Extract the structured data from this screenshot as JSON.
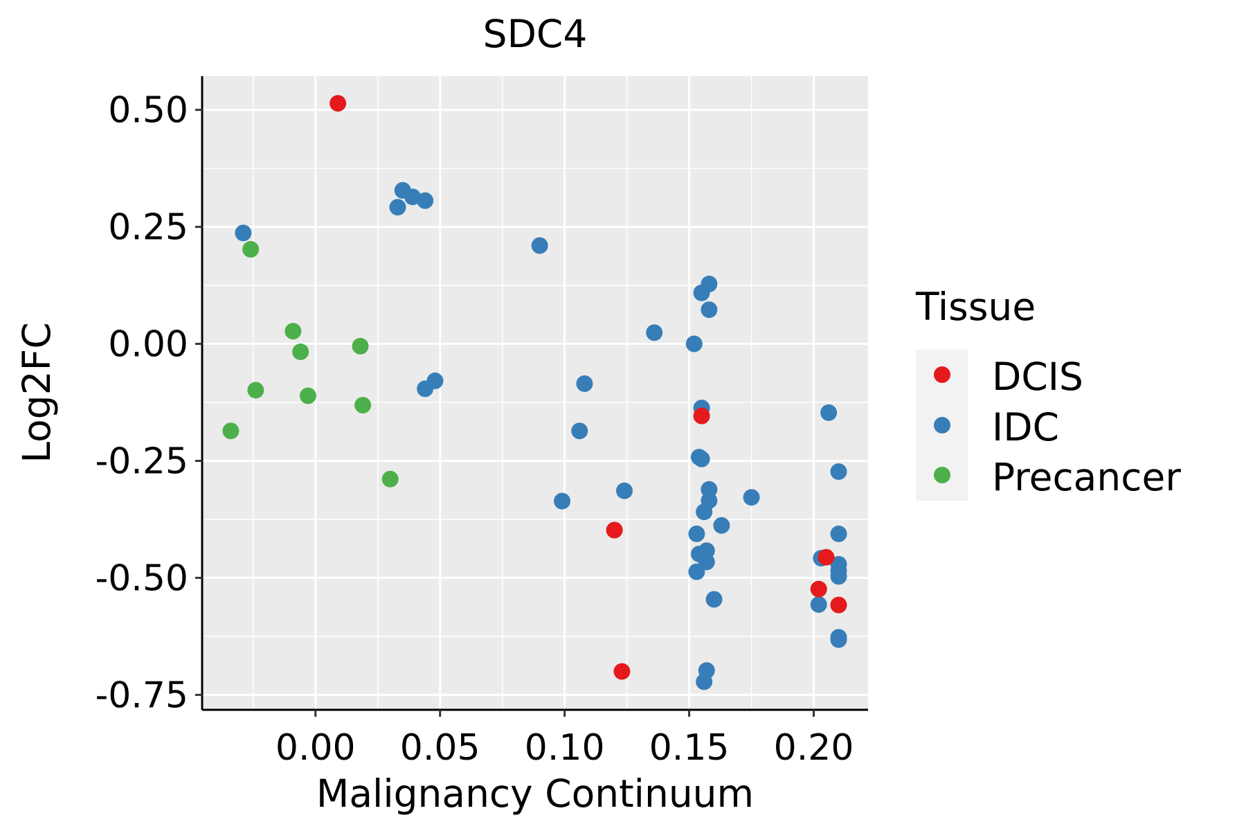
{
  "chart_data": {
    "type": "scatter",
    "title": "SDC4",
    "xlabel": "Malignancy Continuum",
    "ylabel": "Log2FC",
    "xlim": [
      -0.0455,
      0.2218
    ],
    "ylim": [
      -0.782,
      0.572
    ],
    "xticks": [
      0.0,
      0.05,
      0.1,
      0.15,
      0.2
    ],
    "xtick_labels": [
      "0.00",
      "0.05",
      "0.10",
      "0.15",
      "0.20"
    ],
    "yticks": [
      0.5,
      0.25,
      0.0,
      -0.25,
      -0.5,
      -0.75
    ],
    "ytick_labels": [
      "0.50",
      "0.25",
      "0.00",
      "-0.25",
      "-0.50",
      "-0.75"
    ],
    "grid": true,
    "legend": {
      "title": "Tissue",
      "placement": "right",
      "entries": [
        {
          "label": "DCIS",
          "color": "#E41A1C"
        },
        {
          "label": "IDC",
          "color": "#377EB8"
        },
        {
          "label": "Precancer",
          "color": "#4DAF4A"
        }
      ]
    },
    "series": [
      {
        "name": "DCIS",
        "color": "#E41A1C",
        "points": [
          [
            0.009,
            0.514
          ],
          [
            0.155,
            -0.154
          ],
          [
            0.12,
            -0.398
          ],
          [
            0.205,
            -0.456
          ],
          [
            0.202,
            -0.524
          ],
          [
            0.21,
            -0.558
          ],
          [
            0.123,
            -0.7
          ]
        ]
      },
      {
        "name": "IDC",
        "color": "#377EB8",
        "points": [
          [
            -0.029,
            0.237
          ],
          [
            0.035,
            0.328
          ],
          [
            0.039,
            0.314
          ],
          [
            0.044,
            0.306
          ],
          [
            0.033,
            0.292
          ],
          [
            0.09,
            0.21
          ],
          [
            0.044,
            -0.096
          ],
          [
            0.048,
            -0.079
          ],
          [
            0.108,
            -0.085
          ],
          [
            0.106,
            -0.186
          ],
          [
            0.099,
            -0.336
          ],
          [
            0.124,
            -0.314
          ],
          [
            0.136,
            0.024
          ],
          [
            0.158,
            0.128
          ],
          [
            0.155,
            0.109
          ],
          [
            0.158,
            0.073
          ],
          [
            0.152,
            0.0
          ],
          [
            0.155,
            -0.137
          ],
          [
            0.154,
            -0.242
          ],
          [
            0.155,
            -0.246
          ],
          [
            0.158,
            -0.311
          ],
          [
            0.158,
            -0.335
          ],
          [
            0.156,
            -0.359
          ],
          [
            0.163,
            -0.388
          ],
          [
            0.153,
            -0.406
          ],
          [
            0.154,
            -0.449
          ],
          [
            0.157,
            -0.442
          ],
          [
            0.157,
            -0.466
          ],
          [
            0.153,
            -0.487
          ],
          [
            0.16,
            -0.546
          ],
          [
            0.157,
            -0.698
          ],
          [
            0.156,
            -0.722
          ],
          [
            0.175,
            -0.328
          ],
          [
            0.206,
            -0.147
          ],
          [
            0.21,
            -0.273
          ],
          [
            0.21,
            -0.406
          ],
          [
            0.203,
            -0.458
          ],
          [
            0.21,
            -0.471
          ],
          [
            0.21,
            -0.485
          ],
          [
            0.21,
            -0.497
          ],
          [
            0.202,
            -0.557
          ],
          [
            0.21,
            -0.627
          ],
          [
            0.21,
            -0.632
          ]
        ]
      },
      {
        "name": "Precancer",
        "color": "#4DAF4A",
        "points": [
          [
            -0.026,
            0.202
          ],
          [
            -0.009,
            0.027
          ],
          [
            -0.006,
            -0.017
          ],
          [
            0.018,
            -0.005
          ],
          [
            -0.024,
            -0.099
          ],
          [
            -0.003,
            -0.111
          ],
          [
            0.019,
            -0.131
          ],
          [
            -0.034,
            -0.186
          ],
          [
            0.03,
            -0.289
          ]
        ]
      }
    ]
  }
}
